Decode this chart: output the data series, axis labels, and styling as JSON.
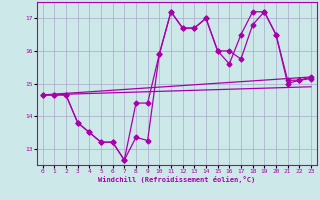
{
  "xlabel": "Windchill (Refroidissement éolien,°C)",
  "bg_color": "#cce8e8",
  "grid_color": "#aaaacc",
  "line_color": "#aa00aa",
  "xlim": [
    -0.5,
    23.5
  ],
  "ylim": [
    12.5,
    17.5
  ],
  "yticks": [
    13,
    14,
    15,
    16,
    17
  ],
  "xticks": [
    0,
    1,
    2,
    3,
    4,
    5,
    6,
    7,
    8,
    9,
    10,
    11,
    12,
    13,
    14,
    15,
    16,
    17,
    18,
    19,
    20,
    21,
    22,
    23
  ],
  "s1_x": [
    0,
    1,
    2,
    3,
    4,
    5,
    6,
    7,
    8,
    9,
    10,
    11,
    12,
    13,
    14,
    15,
    16,
    17,
    18,
    19,
    20,
    21,
    22,
    23
  ],
  "s1_y": [
    14.65,
    14.65,
    14.65,
    13.8,
    13.5,
    13.2,
    13.2,
    12.65,
    13.35,
    13.25,
    15.9,
    17.2,
    16.7,
    16.7,
    17.0,
    16.0,
    16.0,
    15.75,
    16.8,
    17.2,
    16.5,
    15.0,
    15.1,
    15.15
  ],
  "s2_x": [
    0,
    1,
    2,
    3,
    4,
    5,
    6,
    7,
    8,
    9,
    10,
    11,
    12,
    13,
    14,
    15,
    16,
    17,
    18,
    19,
    20,
    21,
    22,
    23
  ],
  "s2_y": [
    14.65,
    14.65,
    14.65,
    13.8,
    13.5,
    13.2,
    13.2,
    12.65,
    14.4,
    14.4,
    15.9,
    17.2,
    16.7,
    16.7,
    17.0,
    16.0,
    15.6,
    16.5,
    17.2,
    17.2,
    16.5,
    15.1,
    15.1,
    15.2
  ],
  "trend1_x": [
    0,
    23
  ],
  "trend1_y": [
    14.65,
    15.2
  ],
  "trend2_x": [
    0,
    23
  ],
  "trend2_y": [
    14.65,
    14.9
  ]
}
